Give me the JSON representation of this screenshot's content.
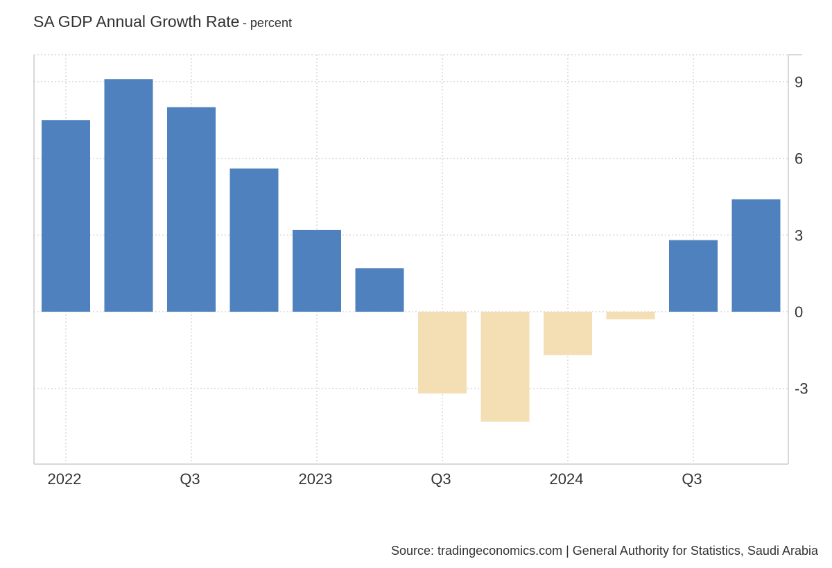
{
  "chart_data": {
    "type": "bar",
    "title": "SA GDP Annual Growth Rate",
    "subtitle": "- percent",
    "xlabel": "",
    "ylabel": "",
    "categories": [
      "2022 Q1",
      "2022 Q2",
      "2022 Q3",
      "2022 Q4",
      "2023 Q1",
      "2023 Q2",
      "2023 Q3",
      "2023 Q4",
      "2024 Q1",
      "2024 Q2",
      "2024 Q3",
      "2024 Q4"
    ],
    "values": [
      7.5,
      9.1,
      8.0,
      5.6,
      3.2,
      1.7,
      -3.2,
      -4.3,
      -1.7,
      -0.3,
      2.8,
      4.4
    ],
    "x_tick_labels": [
      {
        "label": "2022",
        "category": "2022 Q1"
      },
      {
        "label": "Q3",
        "category": "2022 Q3"
      },
      {
        "label": "2023",
        "category": "2023 Q1"
      },
      {
        "label": "Q3",
        "category": "2023 Q3"
      },
      {
        "label": "2024",
        "category": "2024 Q1"
      },
      {
        "label": "Q3",
        "category": "2024 Q3"
      }
    ],
    "y_ticks": [
      -3,
      0,
      3,
      6,
      9
    ],
    "ylim": [
      -6,
      10
    ],
    "y_axis_position": "right",
    "grid": true,
    "legend": "none",
    "colors": {
      "positive": "#4e81bd",
      "negative": "#f4deb3",
      "grid": "#d9d9d9",
      "axis": "#cccccc"
    }
  },
  "source": "Source: tradingeconomics.com | General Authority for Statistics, Saudi Arabia"
}
